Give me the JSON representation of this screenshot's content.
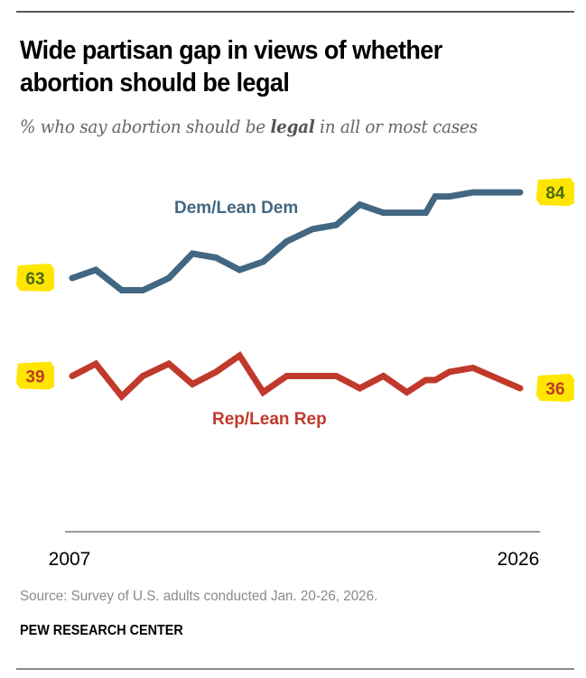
{
  "header": {
    "title": "Wide partisan gap in views of whether abortion should be legal",
    "subtitle_pre": "% who say abortion should be ",
    "subtitle_bold": "legal",
    "subtitle_post": " in all or most cases"
  },
  "footer": {
    "source": "Source: Survey of U.S. adults conducted Jan. 20-26, 2026.",
    "brand": "PEW RESEARCH CENTER"
  },
  "colors": {
    "dem": "#426782",
    "rep": "#C1392B",
    "highlight": "#FFE600",
    "dem_label_text": "#4B6B10",
    "rep_label_text": "#C1392B",
    "axis": "#9a9a9a"
  },
  "chart_data": {
    "type": "line",
    "title": "Wide partisan gap in views of whether abortion should be legal",
    "subtitle": "% who say abortion should be legal in all or most cases",
    "xlabel": "",
    "ylabel": "",
    "x_tick_labels": [
      "2007",
      "2026"
    ],
    "xlim": [
      2007,
      2026
    ],
    "ylim": [
      20,
      95
    ],
    "grid": false,
    "x": [
      2007.0,
      2008.0,
      2009.1,
      2010.0,
      2011.1,
      2012.1,
      2013.1,
      2014.1,
      2015.1,
      2016.1,
      2017.2,
      2018.2,
      2019.2,
      2020.2,
      2021.2,
      2022.0,
      2022.4,
      2023.0,
      2024.0,
      2026.0
    ],
    "series": [
      {
        "name": "Dem/Lean Dem",
        "values": [
          63,
          65,
          60,
          60,
          63,
          69,
          68,
          65,
          67,
          72,
          75,
          76,
          81,
          79,
          79,
          79,
          83,
          83,
          84,
          84
        ],
        "start_label": "63",
        "end_label": "84"
      },
      {
        "name": "Rep/Lean Rep",
        "values": [
          39,
          42,
          34,
          39,
          42,
          37,
          40,
          44,
          35,
          39,
          39,
          39,
          36,
          39,
          35,
          38,
          38,
          40,
          41,
          36
        ],
        "start_label": "39",
        "end_label": "36"
      }
    ]
  }
}
